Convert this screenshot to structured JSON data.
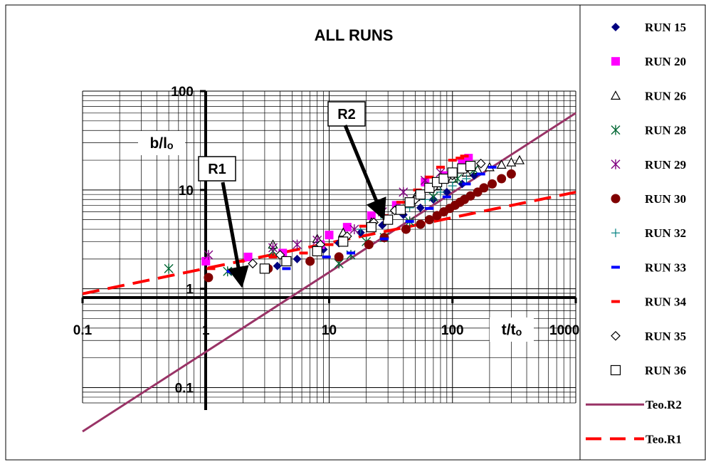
{
  "chart_data": {
    "type": "scatter",
    "title": "ALL RUNS",
    "xlabel": "t/tₒ",
    "ylabel": "b/lₒ",
    "x_scale": "log",
    "y_scale": "log",
    "xlim": [
      0.1,
      1000
    ],
    "ylim": [
      0.07,
      100
    ],
    "x_tick_labels": [
      "0.1",
      "1",
      "10",
      "100",
      "1000"
    ],
    "y_tick_labels": [
      "0.1",
      "1",
      "10",
      "100"
    ],
    "grid": true,
    "legend_position": "right",
    "annotations": [
      {
        "text": "R1",
        "arrow_to": [
          1.9,
          1.3
        ]
      },
      {
        "text": "R2",
        "arrow_to": [
          26,
          6.2
        ]
      }
    ],
    "series": [
      {
        "name": "RUN 15",
        "marker": "diamond-filled",
        "color": "#000080",
        "x": [
          1.6,
          3.8,
          5.5,
          9,
          12,
          18,
          27,
          40,
          55,
          70,
          90,
          120,
          150
        ],
        "y": [
          1.5,
          1.7,
          2.0,
          2.5,
          2.9,
          3.7,
          4.4,
          5.6,
          6.6,
          8.0,
          9.5,
          11.5,
          14
        ]
      },
      {
        "name": "RUN 20",
        "marker": "square-filled",
        "color": "#FF00FF",
        "x": [
          1.0,
          2.2,
          4.2,
          8.5,
          10,
          14,
          22,
          35,
          60,
          85,
          120,
          135
        ],
        "y": [
          1.9,
          2.1,
          2.3,
          2.8,
          3.5,
          4.2,
          5.5,
          7.0,
          12,
          14,
          19,
          21
        ]
      },
      {
        "name": "RUN 26",
        "marker": "triangle-open",
        "color": "#000000",
        "x": [
          3.5,
          8,
          13,
          22,
          35,
          50,
          75,
          100,
          130,
          160,
          200,
          250,
          300,
          350
        ],
        "y": [
          2.8,
          3.2,
          3.7,
          4.7,
          6.3,
          8.5,
          11,
          13,
          15,
          16,
          17,
          18,
          19,
          20
        ]
      },
      {
        "name": "RUN 28",
        "marker": "asterisk",
        "color": "#006633",
        "x": [
          0.5,
          1.5,
          3.5,
          12,
          15,
          20,
          28,
          45,
          70,
          110,
          150
        ],
        "y": [
          1.6,
          1.5,
          2.4,
          1.8,
          2.2,
          3.0,
          3.3,
          4.8,
          8.5,
          13,
          16
        ]
      },
      {
        "name": "RUN 29",
        "marker": "asterisk",
        "color": "#800080",
        "x": [
          1.05,
          3.5,
          5.5,
          8,
          16,
          27,
          40,
          60,
          80
        ],
        "y": [
          2.2,
          2.6,
          2.8,
          3.1,
          4.0,
          6.0,
          9.5,
          12.5,
          15
        ]
      },
      {
        "name": "RUN 30",
        "marker": "circle-filled",
        "color": "#800000",
        "x": [
          1.05,
          3.2,
          7,
          12,
          21,
          28,
          42,
          55,
          65,
          75,
          85,
          95,
          105,
          115,
          125,
          140,
          160,
          180,
          210,
          250,
          300
        ],
        "y": [
          1.3,
          1.6,
          1.9,
          2.1,
          2.8,
          3.3,
          4.0,
          4.5,
          5.0,
          5.5,
          6.0,
          6.5,
          7.0,
          7.5,
          8.0,
          8.7,
          9.5,
          10.5,
          11.5,
          13,
          14.5
        ]
      },
      {
        "name": "RUN 32",
        "marker": "plus",
        "color": "#008080",
        "x": [
          8,
          18,
          28,
          45,
          60,
          80,
          100,
          130
        ],
        "y": [
          2.7,
          4.0,
          5.2,
          6.6,
          8.0,
          9.5,
          11,
          13
        ]
      },
      {
        "name": "RUN 33",
        "marker": "dash",
        "color": "#0000FF",
        "x": [
          1.6,
          4.5,
          9.5,
          15,
          28,
          45,
          65,
          90,
          130,
          170,
          210
        ],
        "y": [
          1.5,
          1.6,
          2.1,
          2.3,
          3.2,
          4.8,
          6.5,
          8.5,
          11.5,
          14.5,
          17
        ]
      },
      {
        "name": "RUN 34",
        "marker": "dash",
        "color": "#FF0000",
        "x": [
          1.1,
          1.9,
          3.5,
          6.2,
          10,
          13,
          19,
          28,
          38,
          52,
          65,
          80,
          100,
          115,
          125
        ],
        "y": [
          1.6,
          1.9,
          2.1,
          2.3,
          2.8,
          3.1,
          4.3,
          5.5,
          7.5,
          10,
          13.5,
          17,
          20,
          21,
          22
        ]
      },
      {
        "name": "RUN 35",
        "marker": "diamond-open",
        "color": "#000000",
        "x": [
          2.4,
          4.0,
          8.5,
          14,
          23,
          34,
          50,
          70,
          100,
          130,
          170
        ],
        "y": [
          1.8,
          2.2,
          2.8,
          3.4,
          4.7,
          6.2,
          8.0,
          10.5,
          14,
          16.5,
          18.5
        ]
      },
      {
        "name": "RUN 36",
        "marker": "square-open",
        "color": "#000000",
        "x": [
          3.0,
          4.5,
          8,
          13,
          22,
          30,
          38,
          45,
          55,
          65,
          75,
          85,
          100,
          120,
          140
        ],
        "y": [
          1.6,
          1.9,
          2.4,
          3.0,
          4.2,
          5.0,
          6.3,
          7.5,
          9.0,
          10.5,
          12,
          13,
          15,
          16.5,
          17.5
        ]
      },
      {
        "name": "Teo.R2",
        "type": "line",
        "style": "solid",
        "color": "#993366",
        "x": [
          0.1,
          1000
        ],
        "y": [
          0.036,
          60
        ]
      },
      {
        "name": "Teo.R1",
        "type": "line",
        "style": "dashed",
        "color": "#FF0000",
        "x": [
          0.1,
          1000
        ],
        "y": [
          0.89,
          9.5
        ]
      }
    ]
  }
}
